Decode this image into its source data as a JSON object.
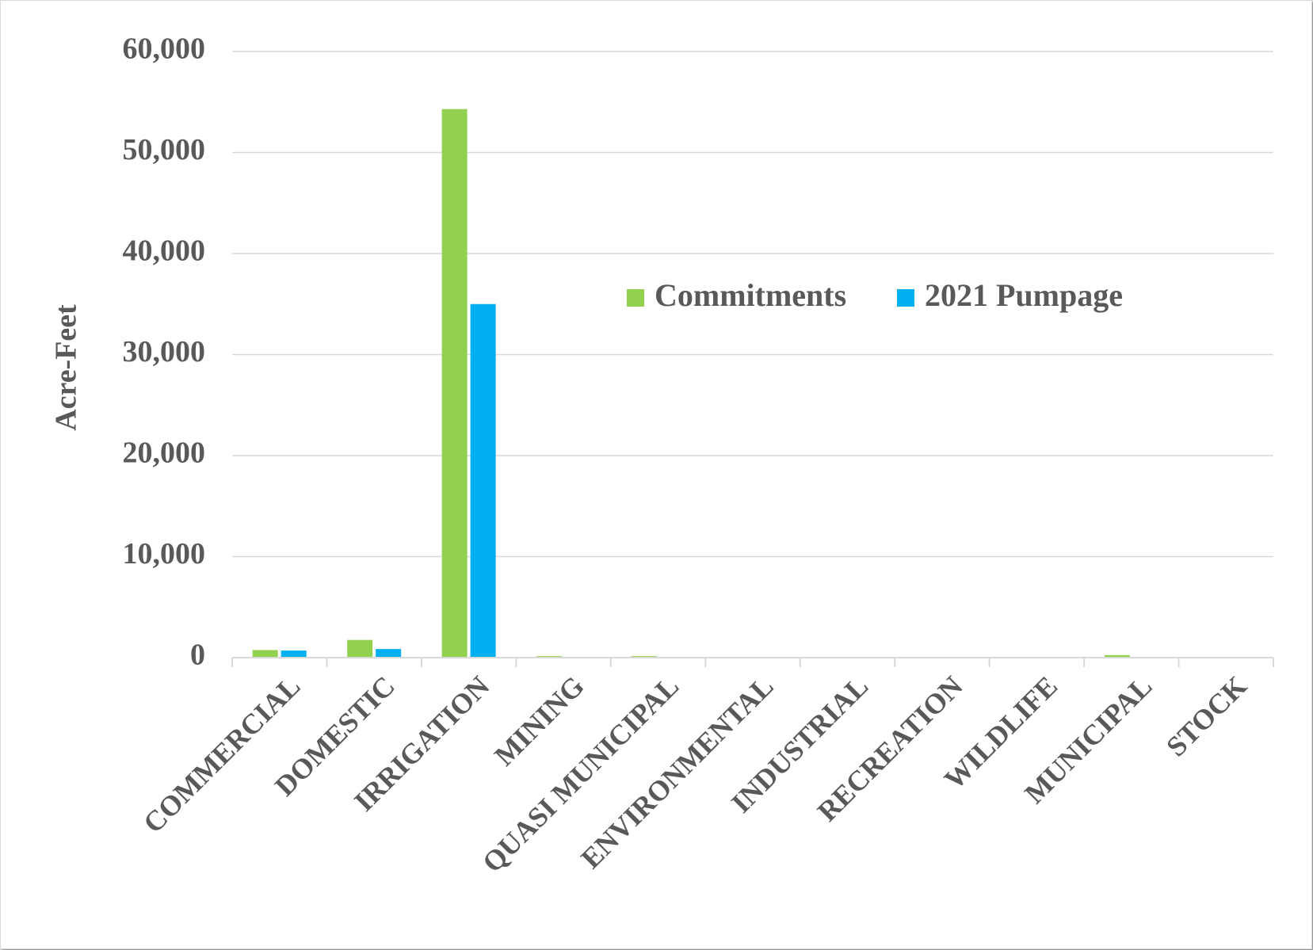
{
  "chart_data": {
    "type": "bar",
    "title": "",
    "xlabel": "",
    "ylabel": "Acre-Feet",
    "ylim": [
      0,
      60000
    ],
    "yticks": [
      0,
      10000,
      20000,
      30000,
      40000,
      50000,
      60000
    ],
    "ytick_labels": [
      "0",
      "10,000",
      "20,000",
      "30,000",
      "40,000",
      "50,000",
      "60,000"
    ],
    "grid": true,
    "legend_position": "top-right",
    "categories": [
      "COMMERCIAL",
      "DOMESTIC",
      "IRRIGATION",
      "MINING",
      "QUASI MUNICIPAL",
      "ENVIRONMENTAL",
      "INDUSTRIAL",
      "RECREATION",
      "WILDLIFE",
      "MUNICIPAL",
      "STOCK"
    ],
    "series": [
      {
        "name": "Commitments",
        "color": "#92d050",
        "values": [
          750,
          1750,
          54300,
          150,
          150,
          0,
          0,
          0,
          0,
          250,
          0
        ]
      },
      {
        "name": "2021 Pumpage",
        "color": "#00b0f0",
        "values": [
          700,
          850,
          35000,
          0,
          0,
          0,
          0,
          0,
          0,
          0,
          0
        ]
      }
    ]
  }
}
